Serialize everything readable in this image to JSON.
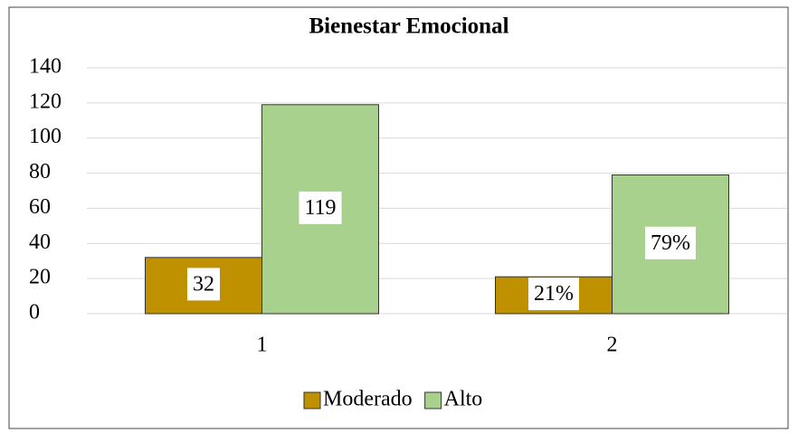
{
  "chart_data": {
    "type": "bar",
    "title": "Bienestar Emocional",
    "categories": [
      "1",
      "2"
    ],
    "series": [
      {
        "name": "Moderado",
        "color": "#bf9000",
        "values": [
          32,
          21
        ],
        "value_labels": [
          "32",
          "21%"
        ]
      },
      {
        "name": "Alto",
        "color": "#a9d18e",
        "values": [
          119,
          79
        ],
        "value_labels": [
          "119",
          "79%"
        ]
      }
    ],
    "ylim": [
      0,
      140
    ],
    "yticks": [
      0,
      20,
      40,
      60,
      80,
      100,
      120,
      140
    ],
    "grid": true,
    "legend": "bottom"
  }
}
